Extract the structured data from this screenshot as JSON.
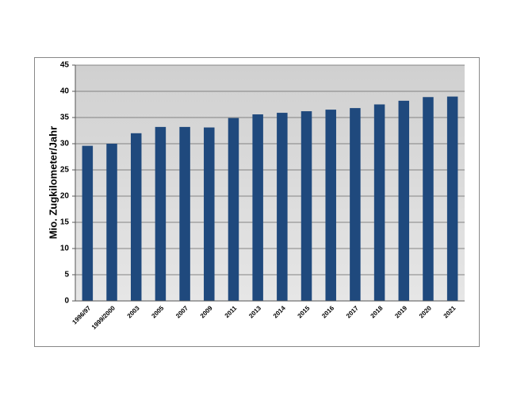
{
  "chart_data": {
    "type": "bar",
    "y_label": "Mio. Zugkilometer/Jahr",
    "categories": [
      "1996/97",
      "1999/2000",
      "2003",
      "2005",
      "2007",
      "2009",
      "2011",
      "2013",
      "2014",
      "2015",
      "2016",
      "2017",
      "2018",
      "2019",
      "2020",
      "2021"
    ],
    "values": [
      29.6,
      30.0,
      32.0,
      33.2,
      33.2,
      33.1,
      34.9,
      35.6,
      35.9,
      36.2,
      36.5,
      36.8,
      37.5,
      38.2,
      38.9,
      39.0
    ],
    "color": "#1f497d",
    "ylim": [
      0,
      45
    ],
    "yticks": [
      0,
      5,
      10,
      15,
      20,
      25,
      30,
      35,
      40,
      45
    ],
    "grid": true
  }
}
